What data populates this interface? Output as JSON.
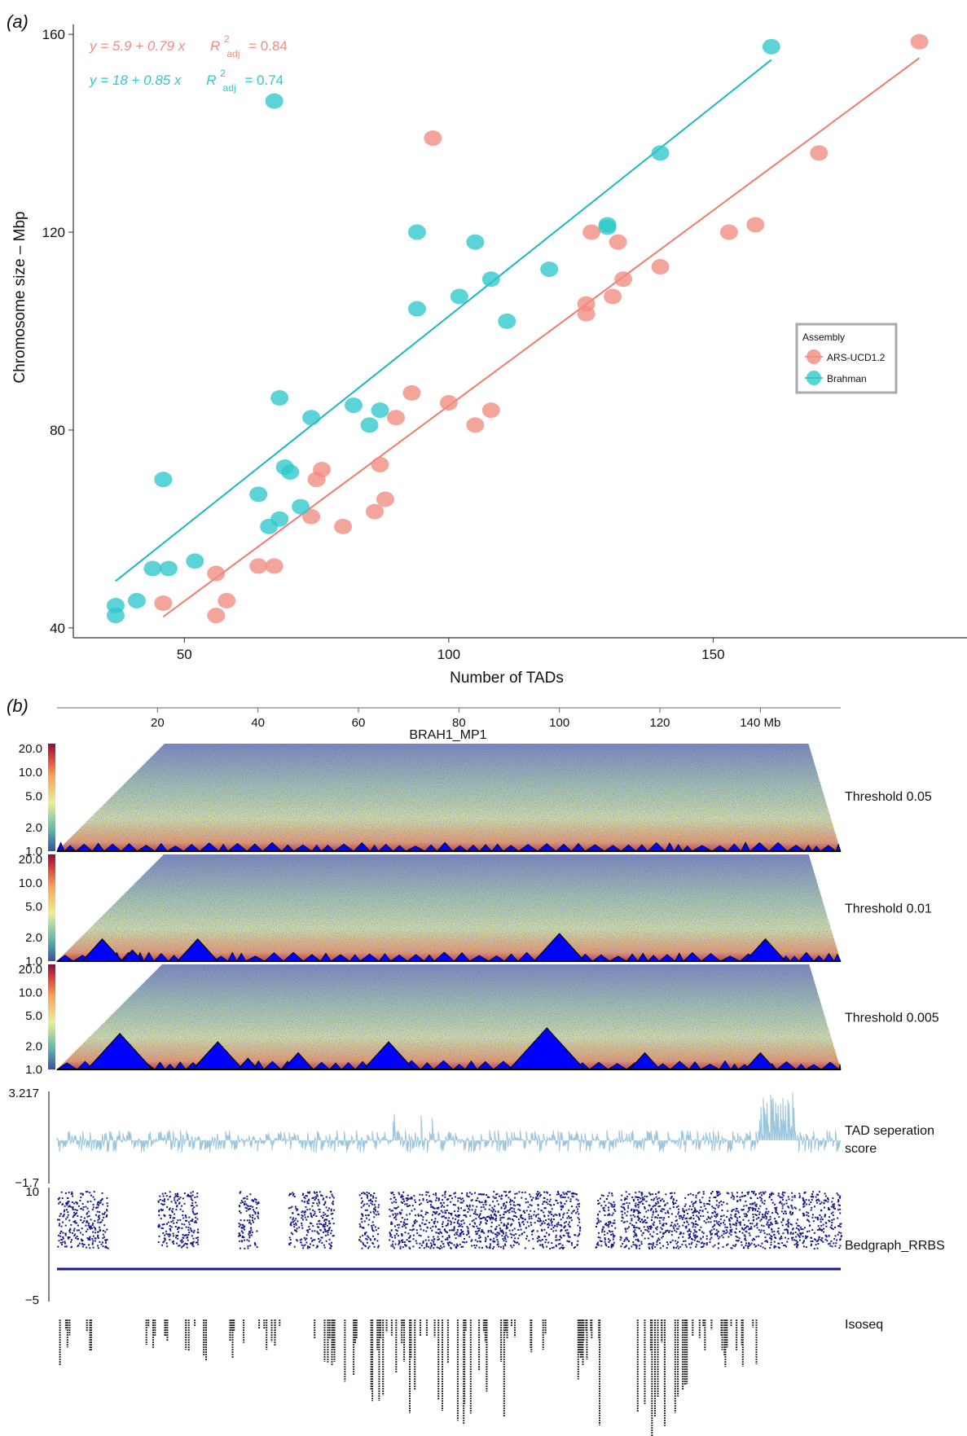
{
  "panel_a": {
    "label": "(a)",
    "legend": {
      "title": "Assembly"
    },
    "equations": [
      {
        "eq": "y = 5.9 + 0.79 x",
        "r2": "R",
        "r2_sup": "2",
        "r2_sub": "adj",
        "r2_val": "= 0.84"
      },
      {
        "eq": "y = 18 + 0.85 x",
        "r2": "R",
        "r2_sup": "2",
        "r2_sub": "adj",
        "r2_val": "= 0.74"
      }
    ]
  },
  "panel_b": {
    "label": "(b)",
    "track_title": "BRAH1_MP1",
    "genome_ticks": [
      "20",
      "40",
      "60",
      "80",
      "100",
      "120",
      "140 Mb"
    ],
    "colorbar_ticks": [
      "20.0",
      "10.0",
      "5.0",
      "2.0",
      "1.0"
    ],
    "tracks": [
      {
        "name": "Threshold 0.05"
      },
      {
        "name": "Threshold 0.01"
      },
      {
        "name": "Threshold 0.005"
      }
    ],
    "tad_score": {
      "label_line1": "TAD seperation",
      "label_line2": "score",
      "ymax": "3.217",
      "ymin": "−1.7"
    },
    "rrbs": {
      "label": "Bedgraph_RRBS",
      "ymax": "10",
      "ymin": "−5"
    },
    "isoseq": {
      "label": "Isoseq"
    }
  },
  "colors": {
    "ars": "#f08c80",
    "brahman": "#2ec8cc",
    "ars_line": "#f07b6e",
    "brahman_line": "#1ab8be",
    "tad": "#0000ff",
    "score": "#9cc6de",
    "rrbs": "#1a1a8c"
  },
  "chart_data": [
    {
      "type": "scatter",
      "xlabel": "Number of TADs",
      "ylabel": "Chromosome size – Mbp",
      "xlim": [
        29,
        198
      ],
      "ylim": [
        38,
        162
      ],
      "xticks": [
        50,
        100,
        150
      ],
      "yticks": [
        40,
        80,
        120,
        160
      ],
      "grid": false,
      "legend_position": "right",
      "series": [
        {
          "name": "ARS-UCD1.2",
          "fit": {
            "intercept": 5.9,
            "slope": 0.79,
            "x_range": [
              46,
              189
            ]
          },
          "points": [
            [
              189,
              158.5
            ],
            [
              170,
              136
            ],
            [
              158,
              121.5
            ],
            [
              153,
              120
            ],
            [
              140,
              113
            ],
            [
              133,
              110.5
            ],
            [
              131,
              107
            ],
            [
              132,
              118
            ],
            [
              127,
              120
            ],
            [
              126,
              105.5
            ],
            [
              126,
              103.5
            ],
            [
              108,
              84
            ],
            [
              105,
              81
            ],
            [
              100,
              85.5
            ],
            [
              97,
              139
            ],
            [
              93,
              87.5
            ],
            [
              90,
              82.5
            ],
            [
              88,
              66
            ],
            [
              87,
              73
            ],
            [
              86,
              63.5
            ],
            [
              80,
              60.5
            ],
            [
              76,
              72
            ],
            [
              75,
              70
            ],
            [
              74,
              62.5
            ],
            [
              67,
              52.5
            ],
            [
              64,
              52.5
            ],
            [
              58,
              45.5
            ],
            [
              56,
              51
            ],
            [
              56,
              42.5
            ],
            [
              46,
              45
            ]
          ]
        },
        {
          "name": "Brahman",
          "fit": {
            "intercept": 18,
            "slope": 0.85,
            "x_range": [
              37,
              161
            ]
          },
          "points": [
            [
              161,
              157.5
            ],
            [
              140,
              136
            ],
            [
              130,
              121.5
            ],
            [
              130,
              121
            ],
            [
              119,
              112.5
            ],
            [
              111,
              102
            ],
            [
              108,
              110.5
            ],
            [
              105,
              118
            ],
            [
              102,
              107
            ],
            [
              94,
              120
            ],
            [
              94,
              104.5
            ],
            [
              87,
              84
            ],
            [
              85,
              81
            ],
            [
              82,
              85
            ],
            [
              74,
              82.5
            ],
            [
              72,
              64.5
            ],
            [
              70,
              71.5
            ],
            [
              69,
              72.5
            ],
            [
              68,
              86.5
            ],
            [
              68,
              62
            ],
            [
              66,
              60.5
            ],
            [
              67,
              146.5
            ],
            [
              64,
              67
            ],
            [
              52,
              53.5
            ],
            [
              47,
              52
            ],
            [
              46,
              70
            ],
            [
              44,
              52
            ],
            [
              41,
              45.5
            ],
            [
              37,
              44.5
            ],
            [
              37,
              42.5
            ]
          ]
        }
      ]
    },
    {
      "type": "heatmap",
      "xlabel": "",
      "x_unit": "Mb",
      "xlim": [
        0,
        156
      ],
      "xticks": [
        20,
        40,
        60,
        80,
        100,
        120,
        140
      ],
      "colorbar_range": [
        1.0,
        20.0
      ],
      "colorbar_ticks": [
        20.0,
        10.0,
        5.0,
        2.0,
        1.0
      ],
      "tracks": [
        {
          "name": "Threshold 0.05",
          "large_tads_mb": [],
          "tad_max_height": 0.1
        },
        {
          "name": "Threshold 0.01",
          "large_tads_mb": [
            [
              5,
              13
            ],
            [
              13,
              17
            ],
            [
              24,
              32
            ],
            [
              95,
              105
            ],
            [
              137,
              145
            ]
          ],
          "tad_max_height": 0.25
        },
        {
          "name": "Threshold 0.005",
          "large_tads_mb": [
            [
              6,
              19
            ],
            [
              27,
              37
            ],
            [
              36,
              40
            ],
            [
              45,
              51
            ],
            [
              61,
              71
            ],
            [
              90,
              105
            ],
            [
              114,
              120
            ],
            [
              137,
              143
            ]
          ],
          "tad_max_height": 0.5
        }
      ],
      "tad_separation_score": {
        "ylim": [
          -1.7,
          3.217
        ]
      },
      "bedgraph_rrbs": {
        "ylim": [
          -5,
          10
        ],
        "baseline": 0
      }
    }
  ]
}
